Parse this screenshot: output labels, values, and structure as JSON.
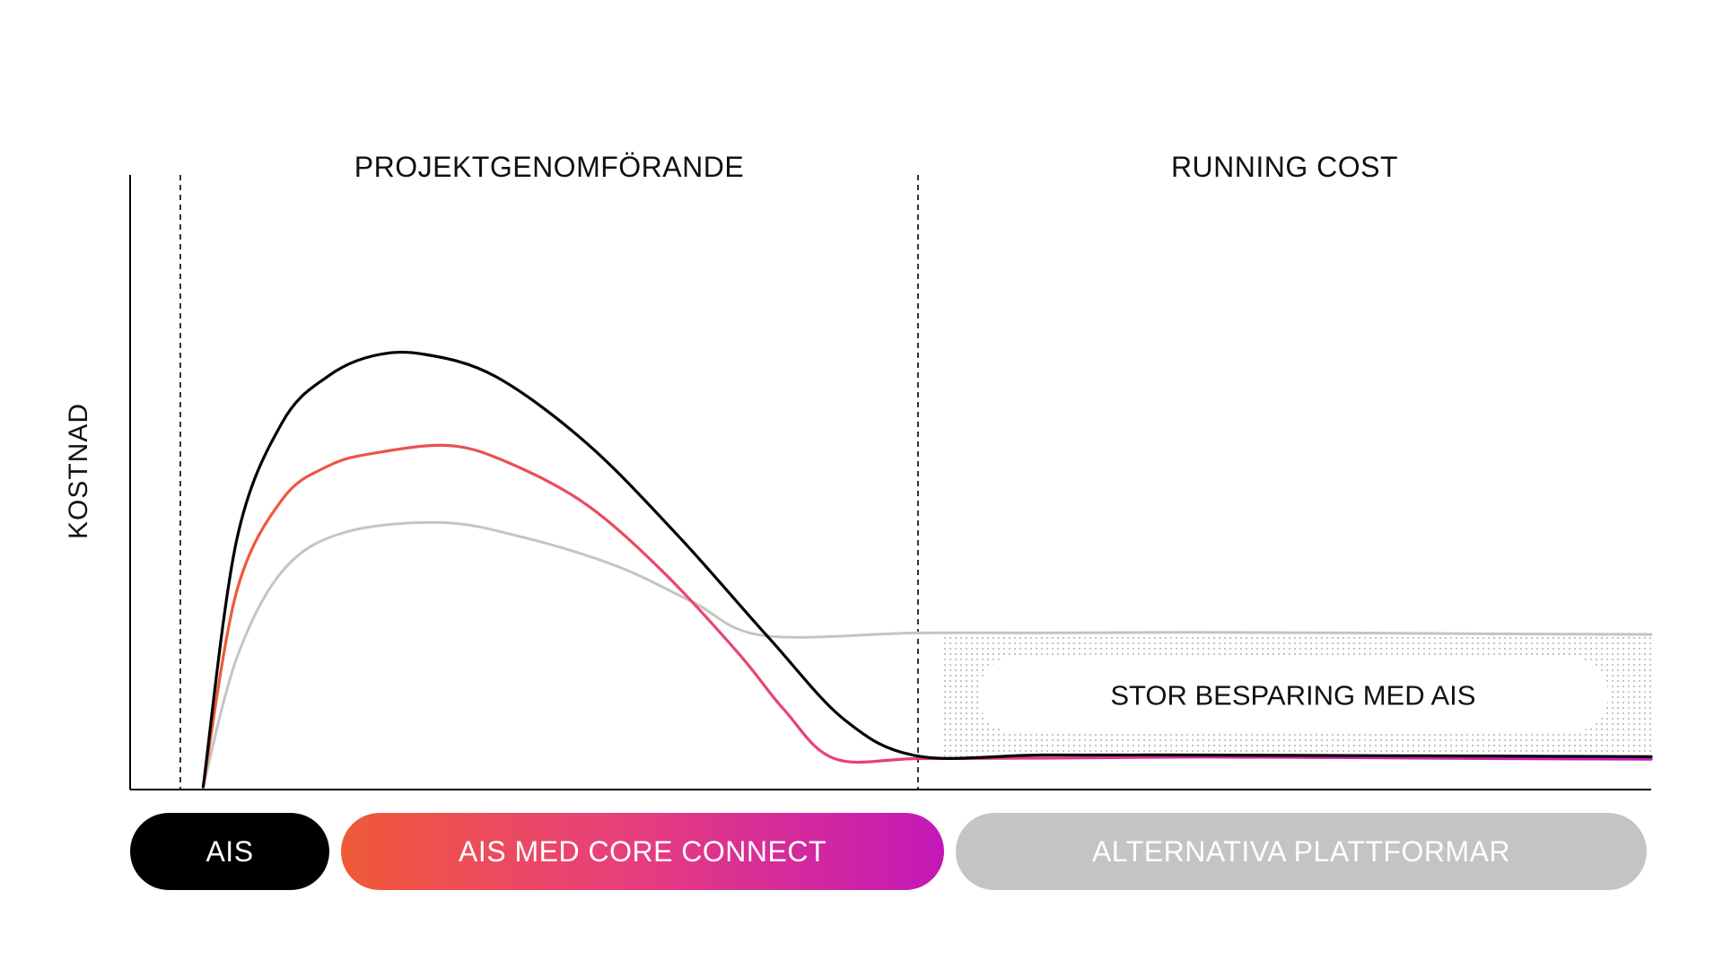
{
  "chart_data": {
    "type": "line",
    "title": "",
    "xlabel": "",
    "ylabel": "KOSTNAD",
    "xlim": [
      0,
      100
    ],
    "ylim": [
      0,
      100
    ],
    "phases": [
      {
        "label": "PROJEKTGENOMFÖRANDE",
        "start": 3.3,
        "end": 51.8
      },
      {
        "label": "RUNNING COST",
        "start": 51.8,
        "end": 100
      }
    ],
    "series": [
      {
        "name": "AIS",
        "color": "#000000",
        "x": [
          4.8,
          7,
          10,
          13,
          16,
          19.3,
          24,
          30,
          36,
          42,
          47,
          51.8,
          60,
          70,
          80,
          90,
          100
        ],
        "y": [
          0,
          48,
          71,
          80,
          84,
          84.3,
          80,
          67,
          49,
          29,
          13,
          6,
          6.2,
          6.2,
          6.1,
          6,
          5.9
        ]
      },
      {
        "name": "AIS MED CORE CONNECT",
        "color": "#ef5a36",
        "color_end": "#c318b8",
        "x": [
          4.8,
          7,
          10,
          13,
          16,
          21,
          25,
          30,
          35,
          40,
          43,
          46.3,
          51.8,
          60,
          70,
          80,
          90,
          100
        ],
        "y": [
          0,
          38,
          56,
          62.5,
          65,
          66.5,
          63,
          55,
          42,
          26,
          15,
          5.5,
          5.5,
          5.6,
          5.8,
          5.7,
          5.5,
          5.4
        ]
      },
      {
        "name": "ALTERNATIVA PLATTFORMAR",
        "color": "#c4c4c4",
        "x": [
          4.8,
          7,
          10,
          14,
          20.5,
          26,
          32,
          37,
          41.6,
          51.8,
          60,
          70,
          80,
          90,
          100
        ],
        "y": [
          0,
          25,
          42,
          49.5,
          51.5,
          48.5,
          43,
          36,
          29.5,
          30,
          30,
          30.1,
          30,
          29.8,
          29.7
        ]
      }
    ],
    "annotations": [
      {
        "label": "STOR BESPARING MED AIS",
        "x_start": 53.5,
        "x_end": 100,
        "pattern": "dots"
      }
    ],
    "grid": false,
    "legend": "bottom"
  },
  "legend": {
    "ais": "AIS",
    "core": "AIS MED CORE CONNECT",
    "alt": "ALTERNATIVA PLATTFORMAR"
  },
  "colors": {
    "axis": "#000000",
    "grid_dots": "#9a9a9a",
    "savings_box": "#ffffff"
  }
}
